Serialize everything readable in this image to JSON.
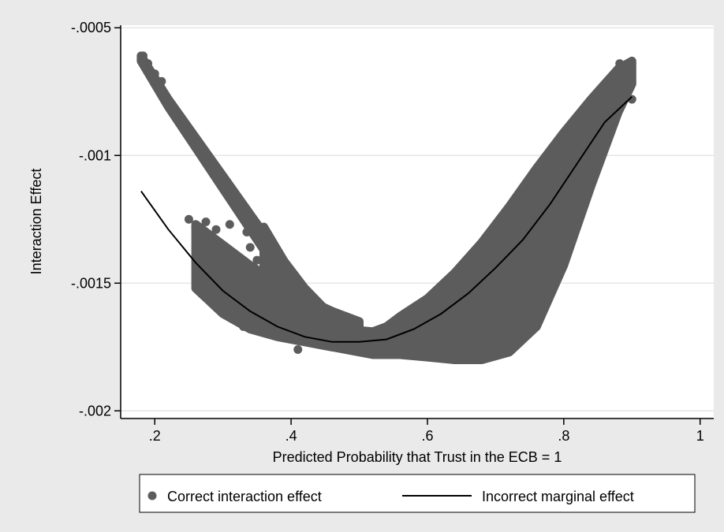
{
  "chart_data": {
    "type": "scatter",
    "title": "",
    "xlabel": "Predicted Probability that Trust in the ECB = 1",
    "ylabel": "Interaction Effect",
    "xlim": [
      0.15,
      1.02
    ],
    "ylim": [
      -0.00203,
      -0.00049
    ],
    "x_ticks": [
      0.2,
      0.4,
      0.6,
      0.8,
      1.0
    ],
    "x_tick_labels": [
      ".2",
      ".4",
      ".6",
      ".8",
      "1"
    ],
    "y_ticks": [
      -0.0005,
      -0.001,
      -0.0015,
      -0.002
    ],
    "y_tick_labels": [
      "-.0005",
      "-.001",
      "-.0015",
      "-.002"
    ],
    "grid": true,
    "legend_position": "bottom",
    "colors": {
      "scatter": "#5c5c5c",
      "line": "#000000",
      "background": "#eaeaea",
      "plot": "#ffffff",
      "grid": "#e6e6e6"
    },
    "series": [
      {
        "name": "Correct interaction effect",
        "kind": "scatter",
        "bands": [
          {
            "x": [
              0.18,
              0.22,
              0.26,
              0.3,
              0.34,
              0.38,
              0.42,
              0.46,
              0.5,
              0.54,
              0.56
            ],
            "y_upper": [
              -0.00061,
              -0.00078,
              -0.00093,
              -0.00108,
              -0.00123,
              -0.00138,
              -0.00152,
              -0.00163,
              -0.00171,
              -0.00175,
              -0.00177
            ],
            "y_lower": [
              -0.00063,
              -0.00081,
              -0.00097,
              -0.00113,
              -0.00129,
              -0.00145,
              -0.00159,
              -0.0017,
              -0.00176,
              -0.00178,
              -0.00178
            ]
          },
          {
            "x": [
              0.36,
              0.4,
              0.44,
              0.48,
              0.52,
              0.54,
              0.56,
              0.6,
              0.64,
              0.68,
              0.72,
              0.76,
              0.8,
              0.84,
              0.88,
              0.9
            ],
            "y_upper": [
              -0.00128,
              -0.00146,
              -0.0016,
              -0.00168,
              -0.00169,
              -0.00167,
              -0.00163,
              -0.00156,
              -0.00146,
              -0.00134,
              -0.0012,
              -0.00105,
              -0.00091,
              -0.00078,
              -0.00066,
              -0.00063
            ],
            "y_lower": [
              -0.00163,
              -0.0017,
              -0.00174,
              -0.00176,
              -0.00178,
              -0.00178,
              -0.00178,
              -0.00179,
              -0.0018,
              -0.0018,
              -0.00177,
              -0.00167,
              -0.00143,
              -0.00112,
              -0.00083,
              -0.00072
            ]
          },
          {
            "x": [
              0.26,
              0.3,
              0.34,
              0.38,
              0.42,
              0.46,
              0.5
            ],
            "y_upper": [
              -0.00127,
              -0.00135,
              -0.00143,
              -0.0015,
              -0.00156,
              -0.00161,
              -0.00165
            ],
            "y_lower": [
              -0.00152,
              -0.00162,
              -0.00168,
              -0.00171,
              -0.00173,
              -0.00175,
              -0.00176
            ]
          }
        ],
        "points": [
          [
            0.183,
            -0.00061
          ],
          [
            0.19,
            -0.00064
          ],
          [
            0.2,
            -0.00068
          ],
          [
            0.21,
            -0.00071
          ],
          [
            0.25,
            -0.00125
          ],
          [
            0.26,
            -0.00128
          ],
          [
            0.275,
            -0.00126
          ],
          [
            0.29,
            -0.00129
          ],
          [
            0.31,
            -0.00127
          ],
          [
            0.335,
            -0.0013
          ],
          [
            0.34,
            -0.00136
          ],
          [
            0.35,
            -0.00141
          ],
          [
            0.36,
            -0.00146
          ],
          [
            0.37,
            -0.00151
          ],
          [
            0.33,
            -0.00167
          ],
          [
            0.41,
            -0.00176
          ],
          [
            0.5,
            -0.00174
          ],
          [
            0.63,
            -0.00178
          ],
          [
            0.69,
            -0.00178
          ],
          [
            0.72,
            -0.00172
          ],
          [
            0.77,
            -0.00156
          ],
          [
            0.79,
            -0.00143
          ],
          [
            0.8,
            -0.00132
          ],
          [
            0.81,
            -0.00118
          ],
          [
            0.82,
            -0.00105
          ],
          [
            0.83,
            -0.00094
          ],
          [
            0.86,
            -0.0008
          ],
          [
            0.875,
            -0.00068
          ],
          [
            0.882,
            -0.00064
          ],
          [
            0.89,
            -0.00066
          ],
          [
            0.895,
            -0.00068
          ],
          [
            0.898,
            -0.00071
          ],
          [
            0.9,
            -0.00078
          ]
        ]
      },
      {
        "name": "Incorrect marginal effect",
        "kind": "line",
        "x": [
          0.18,
          0.22,
          0.26,
          0.3,
          0.34,
          0.38,
          0.42,
          0.46,
          0.5,
          0.54,
          0.58,
          0.62,
          0.66,
          0.7,
          0.74,
          0.78,
          0.82,
          0.86,
          0.9
        ],
        "y": [
          -0.00114,
          -0.00129,
          -0.00142,
          -0.00153,
          -0.00161,
          -0.00167,
          -0.00171,
          -0.00173,
          -0.00173,
          -0.00172,
          -0.00168,
          -0.00162,
          -0.00154,
          -0.00144,
          -0.00133,
          -0.00119,
          -0.00103,
          -0.00087,
          -0.00077
        ]
      }
    ]
  }
}
